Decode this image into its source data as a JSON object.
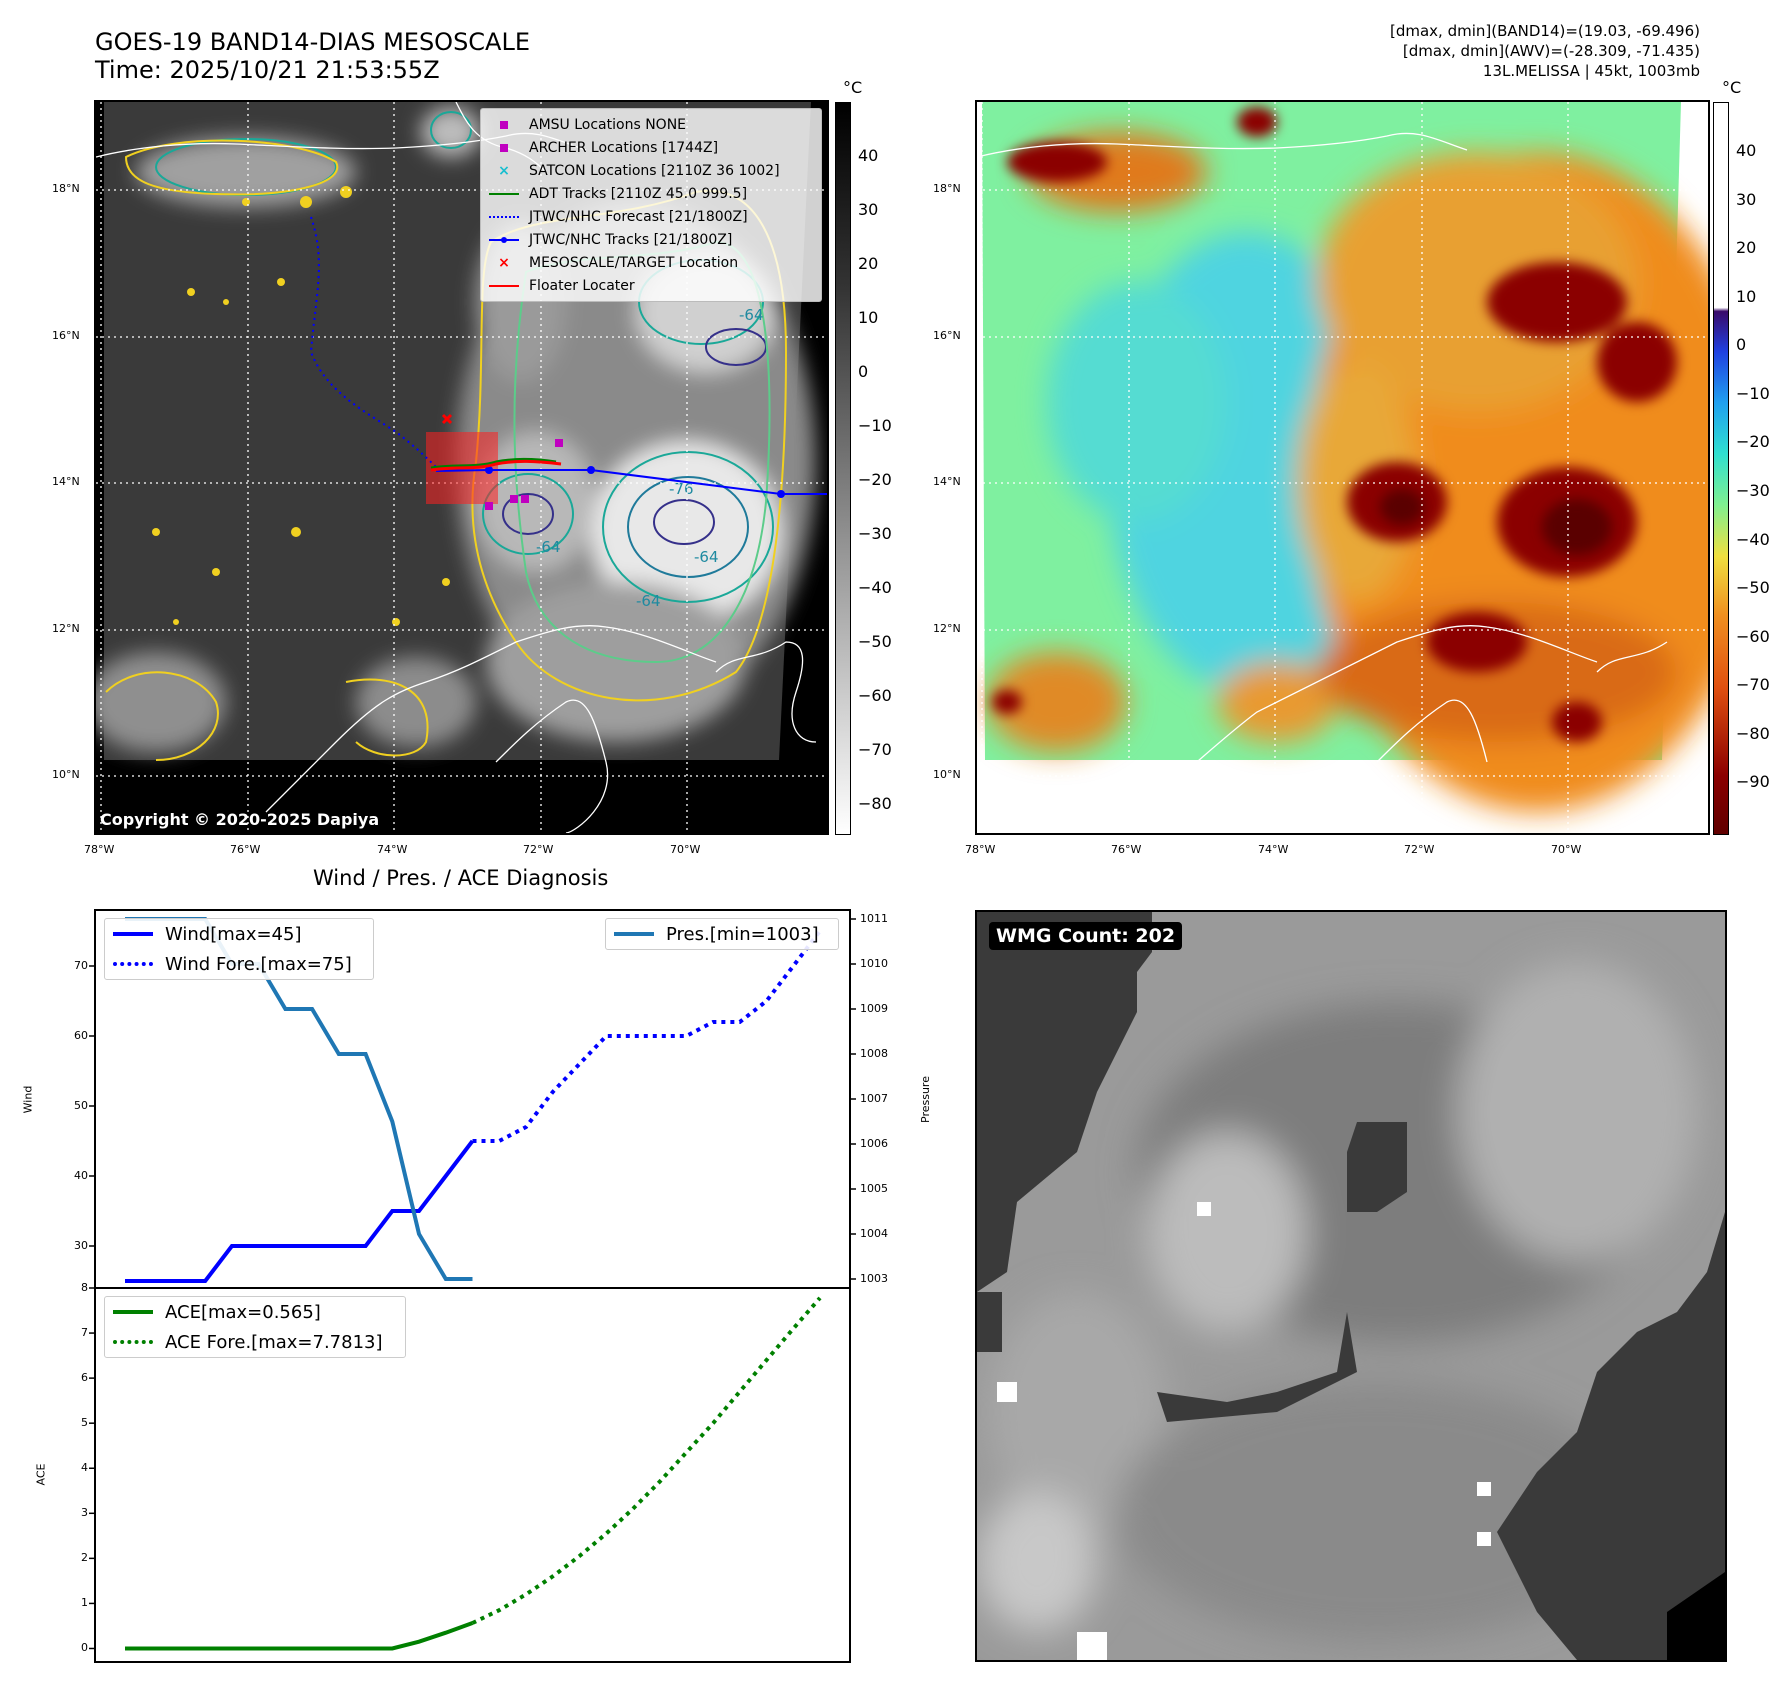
{
  "header": {
    "title_line1": "GOES-19 BAND14-DIAS MESOSCALE",
    "title_line2": "Time: 2025/10/21 21:53:55Z",
    "info_line1": "[dmax, dmin](BAND14)=(19.03, -69.496)",
    "info_line2": "[dmax, dmin](AWV)=(-28.309, -71.435)",
    "info_line3": "13L.MELISSA | 45kt, 1003mb"
  },
  "map": {
    "lat_labels": [
      "18°N",
      "16°N",
      "14°N",
      "12°N",
      "10°N"
    ],
    "lon_labels": [
      "78°W",
      "76°W",
      "74°W",
      "72°W",
      "70°W"
    ],
    "contour_labels": [
      "-64",
      "-76",
      "-64",
      "-64",
      "-64"
    ],
    "copyright": "Copyright © 2020-2025 Dapiya",
    "legend": [
      {
        "label": "AMSU Locations NONE",
        "symbol": "square",
        "color": "#c000c0"
      },
      {
        "label": "ARCHER Locations [1744Z]",
        "symbol": "square",
        "color": "#c000c0"
      },
      {
        "label": "SATCON Locations [2110Z 36 1002]",
        "symbol": "x",
        "color": "#17becf"
      },
      {
        "label": "ADT Tracks [2110Z 45.0 999.5]",
        "symbol": "line",
        "color": "#008000"
      },
      {
        "label": "JTWC/NHC Forecast [21/1800Z]",
        "symbol": "dotted",
        "color": "#0000ff"
      },
      {
        "label": "JTWC/NHC Tracks [21/1800Z]",
        "symbol": "line-dot",
        "color": "#0000ff"
      },
      {
        "label": "MESOSCALE/TARGET Location",
        "symbol": "x",
        "color": "#ff0000"
      },
      {
        "label": "Floater Locater",
        "symbol": "line",
        "color": "#ff0000"
      }
    ],
    "colorbar_unit": "°C",
    "colorbar_left_ticks": [
      "40",
      "30",
      "20",
      "10",
      "0",
      "−10",
      "−20",
      "−30",
      "−40",
      "−50",
      "−60",
      "−70",
      "−80"
    ],
    "colorbar_right_ticks": [
      "40",
      "30",
      "20",
      "10",
      "0",
      "−10",
      "−20",
      "−30",
      "−40",
      "−50",
      "−60",
      "−70",
      "−80",
      "−90"
    ],
    "colors": {
      "warm_red": "#8b0000",
      "orange": "#f08c1e",
      "cyan": "#4fd4e0",
      "green": "#7ff0a0"
    }
  },
  "diag": {
    "title": "Wind / Pres. / ACE Diagnosis",
    "wind_ylabel": "Wind",
    "pres_ylabel": "Pressure",
    "ace_ylabel": "ACE",
    "wind_ticks": [
      "70",
      "60",
      "50",
      "40",
      "30"
    ],
    "pres_ticks": [
      "1011",
      "1010",
      "1009",
      "1008",
      "1007",
      "1006",
      "1005",
      "1004",
      "1003"
    ],
    "ace_ticks": [
      "8",
      "7",
      "6",
      "5",
      "4",
      "3",
      "2",
      "1",
      "0"
    ],
    "legend_wind": "Wind[max=45]",
    "legend_wind_fore": "Wind Fore.[max=75]",
    "legend_pres": "Pres.[min=1003]",
    "legend_ace": "ACE[max=0.565]",
    "legend_ace_fore": "ACE Fore.[max=7.7813]"
  },
  "wmg": {
    "label": "WMG Count: 202"
  },
  "chart_data": [
    {
      "type": "line",
      "title": "Wind / Pres. / ACE Diagnosis",
      "ylabel": "Wind",
      "ylim": [
        24,
        78
      ],
      "series": [
        {
          "name": "Wind[max=45]",
          "x": [
            0,
            1,
            2,
            3,
            4,
            5,
            6,
            7,
            8,
            9,
            10,
            11,
            12,
            13
          ],
          "values": [
            25,
            25,
            25,
            25,
            30,
            30,
            30,
            30,
            30,
            30,
            35,
            35,
            40,
            45
          ]
        },
        {
          "name": "Wind Fore.[max=75]",
          "x": [
            13,
            14,
            15,
            16,
            17,
            18,
            19,
            20,
            21,
            22,
            23,
            24,
            25,
            26
          ],
          "values": [
            45,
            45,
            47,
            52,
            56,
            60,
            60,
            60,
            60,
            62,
            62,
            65,
            70,
            75
          ]
        }
      ]
    },
    {
      "type": "line",
      "ylabel": "Pressure",
      "ylim": [
        1002.8,
        1011.2
      ],
      "series": [
        {
          "name": "Pres.[min=1003]",
          "x": [
            0,
            1,
            2,
            3,
            4,
            5,
            6,
            7,
            8,
            9,
            10,
            11,
            12,
            13
          ],
          "values": [
            1011,
            1011,
            1011,
            1011,
            1010,
            1010,
            1009,
            1009,
            1008,
            1008,
            1006.5,
            1004,
            1003,
            1003
          ]
        }
      ]
    },
    {
      "type": "line",
      "ylabel": "ACE",
      "ylim": [
        -0.3,
        8
      ],
      "series": [
        {
          "name": "ACE[max=0.565]",
          "x": [
            0,
            2,
            4,
            6,
            8,
            10,
            11,
            12,
            13
          ],
          "values": [
            0,
            0,
            0,
            0,
            0,
            0,
            0.15,
            0.35,
            0.565
          ]
        },
        {
          "name": "ACE Fore.[max=7.7813]",
          "x": [
            13,
            14,
            15,
            16,
            17,
            18,
            19,
            20,
            21,
            22,
            23,
            24,
            25,
            26
          ],
          "values": [
            0.565,
            0.85,
            1.2,
            1.6,
            2.05,
            2.55,
            3.1,
            3.7,
            4.35,
            5.0,
            5.7,
            6.4,
            7.1,
            7.7813
          ]
        }
      ]
    }
  ]
}
